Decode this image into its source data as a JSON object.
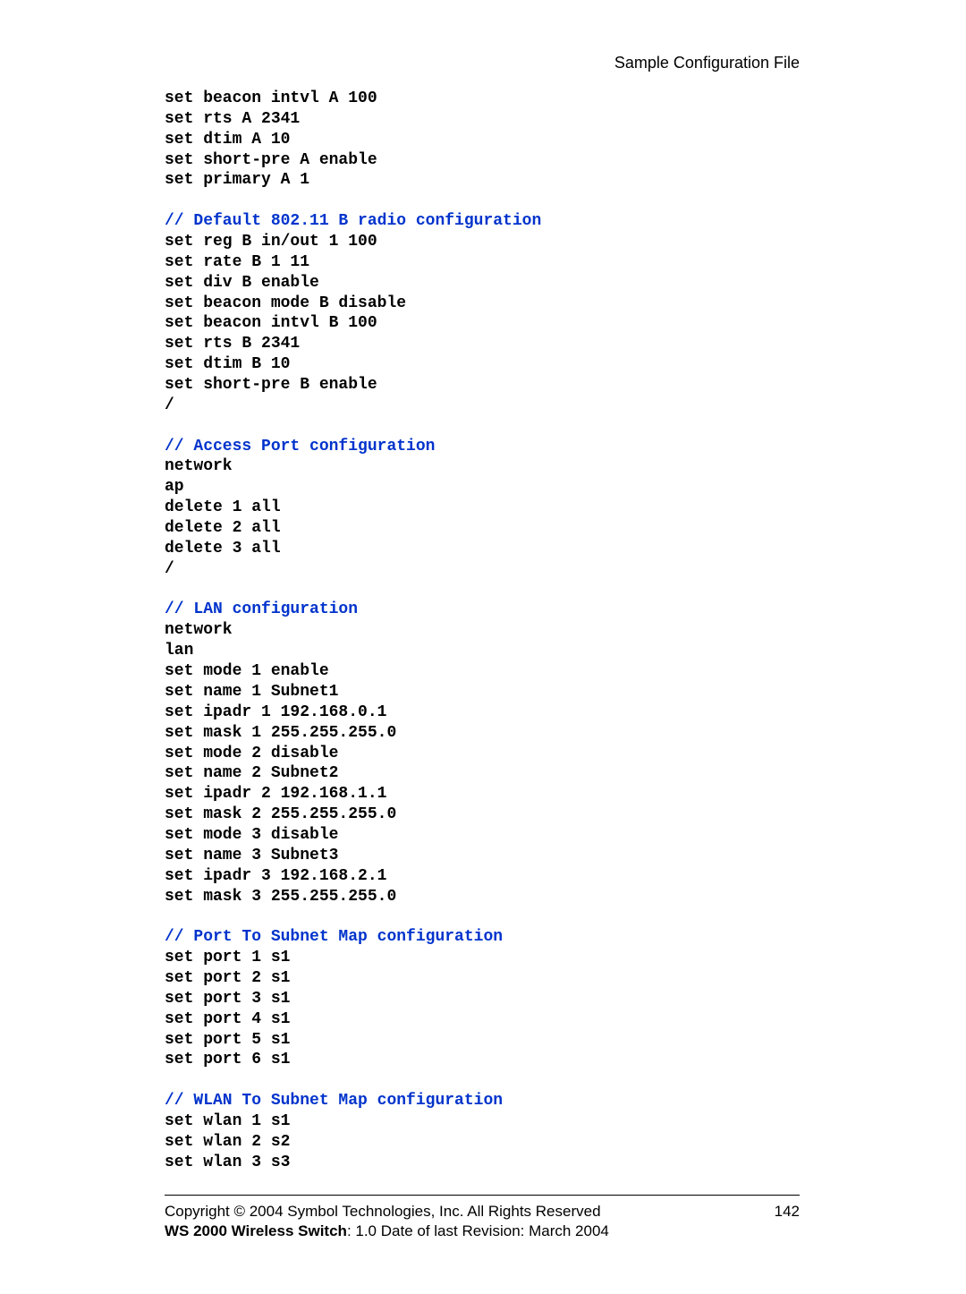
{
  "header_text": "Sample Configuration File",
  "code_lines": [
    {
      "text": "set beacon intvl A 100",
      "comment": false
    },
    {
      "text": "set rts A 2341",
      "comment": false
    },
    {
      "text": "set dtim A 10",
      "comment": false
    },
    {
      "text": "set short-pre A enable",
      "comment": false
    },
    {
      "text": "set primary A 1",
      "comment": false
    },
    {
      "text": "",
      "comment": false
    },
    {
      "text": "// Default 802.11 B radio configuration",
      "comment": true
    },
    {
      "text": "set reg B in/out 1 100",
      "comment": false
    },
    {
      "text": "set rate B 1 11",
      "comment": false
    },
    {
      "text": "set div B enable",
      "comment": false
    },
    {
      "text": "set beacon mode B disable",
      "comment": false
    },
    {
      "text": "set beacon intvl B 100",
      "comment": false
    },
    {
      "text": "set rts B 2341",
      "comment": false
    },
    {
      "text": "set dtim B 10",
      "comment": false
    },
    {
      "text": "set short-pre B enable",
      "comment": false
    },
    {
      "text": "/",
      "comment": false
    },
    {
      "text": "",
      "comment": false
    },
    {
      "text": "// Access Port configuration",
      "comment": true
    },
    {
      "text": "network",
      "comment": false
    },
    {
      "text": "ap",
      "comment": false
    },
    {
      "text": "delete 1 all",
      "comment": false
    },
    {
      "text": "delete 2 all",
      "comment": false
    },
    {
      "text": "delete 3 all",
      "comment": false
    },
    {
      "text": "/",
      "comment": false
    },
    {
      "text": "",
      "comment": false
    },
    {
      "text": "// LAN configuration",
      "comment": true
    },
    {
      "text": "network",
      "comment": false
    },
    {
      "text": "lan",
      "comment": false
    },
    {
      "text": "set mode 1 enable",
      "comment": false
    },
    {
      "text": "set name 1 Subnet1",
      "comment": false
    },
    {
      "text": "set ipadr 1 192.168.0.1",
      "comment": false
    },
    {
      "text": "set mask 1 255.255.255.0",
      "comment": false
    },
    {
      "text": "set mode 2 disable",
      "comment": false
    },
    {
      "text": "set name 2 Subnet2",
      "comment": false
    },
    {
      "text": "set ipadr 2 192.168.1.1",
      "comment": false
    },
    {
      "text": "set mask 2 255.255.255.0",
      "comment": false
    },
    {
      "text": "set mode 3 disable",
      "comment": false
    },
    {
      "text": "set name 3 Subnet3",
      "comment": false
    },
    {
      "text": "set ipadr 3 192.168.2.1",
      "comment": false
    },
    {
      "text": "set mask 3 255.255.255.0",
      "comment": false
    },
    {
      "text": "",
      "comment": false
    },
    {
      "text": "// Port To Subnet Map configuration",
      "comment": true
    },
    {
      "text": "set port 1 s1",
      "comment": false
    },
    {
      "text": "set port 2 s1",
      "comment": false
    },
    {
      "text": "set port 3 s1",
      "comment": false
    },
    {
      "text": "set port 4 s1",
      "comment": false
    },
    {
      "text": "set port 5 s1",
      "comment": false
    },
    {
      "text": "set port 6 s1",
      "comment": false
    },
    {
      "text": "",
      "comment": false
    },
    {
      "text": "// WLAN To Subnet Map configuration",
      "comment": true
    },
    {
      "text": "set wlan 1 s1",
      "comment": false
    },
    {
      "text": "set wlan 2 s2",
      "comment": false
    },
    {
      "text": "set wlan 3 s3",
      "comment": false
    }
  ],
  "footer": {
    "copyright": "Copyright © 2004 Symbol Technologies, Inc. All Rights Reserved",
    "page_number": "142",
    "product_bold": "WS 2000 Wireless Switch",
    "product_rest": ": 1.0  Date of last Revision: March 2004"
  }
}
